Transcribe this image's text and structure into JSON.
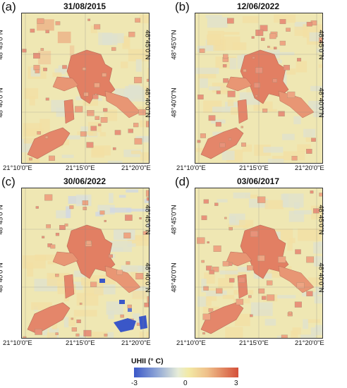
{
  "panels": [
    {
      "label": "(a)",
      "date": "31/08/2015",
      "variant": "a"
    },
    {
      "label": "(b)",
      "date": "12/06/2022",
      "variant": "b"
    },
    {
      "label": "(c)",
      "date": "30/06/2022",
      "variant": "c"
    },
    {
      "label": "(d)",
      "date": "03/06/2017",
      "variant": "d"
    }
  ],
  "x_ticks": [
    "21°10'0\"E",
    "21°15'0\"E",
    "21°20'0\"E"
  ],
  "y_ticks": [
    "48°45'0\"N",
    "48°40'0\"N"
  ],
  "legend": {
    "title": "UHII (° C)",
    "tick_min": "-3",
    "tick_mid": "0",
    "tick_max": "3",
    "colors": {
      "cold": "#3a57c8",
      "neutral": "#f2eaa6",
      "hot": "#d4503a"
    }
  }
}
